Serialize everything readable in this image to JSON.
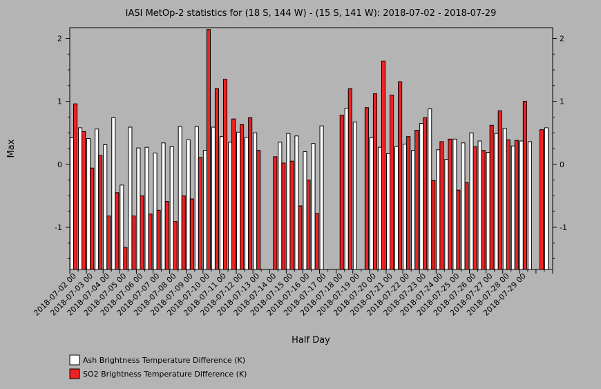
{
  "chart_data": {
    "type": "bar",
    "title": "IASI MetOp-2 statistics for (18 S, 144 W) - (15 S, 141 W): 2018-07-02 - 2018-07-29",
    "xlabel": "Half Day",
    "ylabel": "Max",
    "ylim": [
      -1.67,
      2.17
    ],
    "yticks": [
      -1,
      0,
      1,
      2
    ],
    "ytick_labels": [
      "-1",
      "0",
      "1",
      "2"
    ],
    "x_tick_labels": [
      "2018-07-02 00",
      "2018-07-03 00",
      "2018-07-04 00",
      "2018-07-05 00",
      "2018-07-06 00",
      "2018-07-07 00",
      "2018-07-08 00",
      "2018-07-09 00",
      "2018-07-10 00",
      "2018-07-11 00",
      "2018-07-12 00",
      "2018-07-13 00",
      "2018-07-14 00",
      "2018-07-15 00",
      "2018-07-16 00",
      "2018-07-17 00",
      "2018-07-18 00",
      "2018-07-19 00",
      "2018-07-20 00",
      "2018-07-21 00",
      "2018-07-22 00",
      "2018-07-23 00",
      "2018-07-24 00",
      "2018-07-25 00",
      "2018-07-26 00",
      "2018-07-27 00",
      "2018-07-28 00",
      "2018-07-29 00"
    ],
    "legend_position": "bottom-left",
    "series": [
      {
        "name": "Ash Brightness Temperature Difference (K)",
        "color": "#ffffff",
        "values": [
          0.42,
          0.58,
          0.41,
          0.56,
          0.31,
          0.74,
          -0.33,
          0.59,
          0.26,
          0.27,
          0.18,
          0.34,
          0.28,
          0.6,
          0.39,
          0.6,
          0.22,
          0.59,
          0.44,
          0.35,
          0.51,
          0.43,
          0.5,
          null,
          null,
          0.35,
          0.49,
          0.45,
          0.2,
          0.33,
          0.61,
          null,
          null,
          0.89,
          0.67,
          null,
          0.42,
          0.27,
          0.17,
          0.28,
          0.32,
          0.22,
          0.65,
          0.88,
          0.23,
          0.08,
          0.4,
          0.34,
          0.5,
          0.37,
          0.19,
          0.49,
          0.57,
          0.29,
          0.37,
          0.36,
          null,
          0.58
        ]
      },
      {
        "name": "SO2 Brightness Temperature Difference (K)",
        "color": "#ee2222",
        "values": [
          0.96,
          0.52,
          -0.06,
          0.14,
          -0.82,
          -0.45,
          -1.32,
          -0.82,
          -0.5,
          -0.79,
          -0.73,
          -0.59,
          -0.91,
          -0.5,
          -0.55,
          0.11,
          2.14,
          1.2,
          1.35,
          0.72,
          0.63,
          0.74,
          0.22,
          null,
          0.12,
          0.02,
          0.05,
          -0.66,
          -0.25,
          -0.78,
          null,
          null,
          0.78,
          1.2,
          null,
          0.9,
          1.12,
          1.64,
          1.1,
          1.31,
          0.44,
          0.54,
          0.74,
          -0.26,
          0.36,
          0.4,
          -0.41,
          -0.29,
          0.28,
          0.22,
          0.62,
          0.85,
          0.39,
          0.38,
          1.0,
          null,
          0.55,
          null
        ]
      }
    ]
  }
}
